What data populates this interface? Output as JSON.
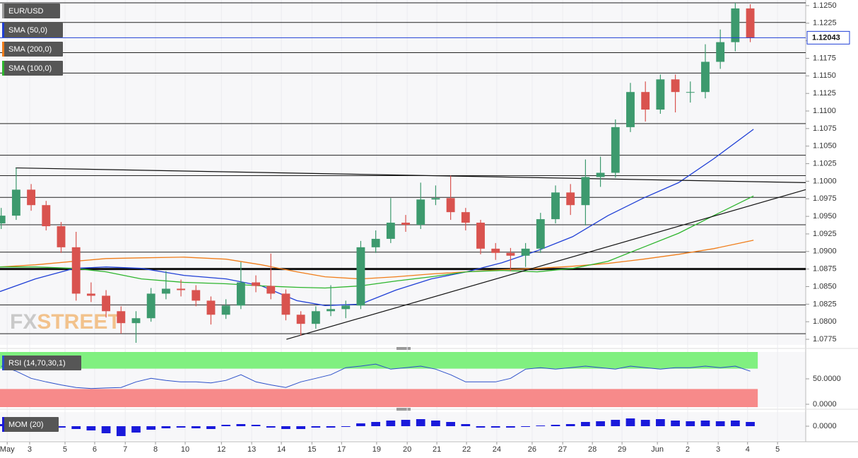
{
  "chart_data": {
    "type": "candlestick",
    "title": "EUR/USD",
    "x": [
      -0.2,
      0.3,
      0.8,
      1.3,
      1.8,
      2.3,
      2.8,
      3.3,
      3.8,
      4.3,
      4.8,
      5.3,
      5.8,
      6.3,
      6.8,
      7.3,
      7.8,
      8.3,
      8.8,
      9.3,
      9.8,
      10.3,
      10.8,
      11.3,
      11.8,
      12.3,
      12.8,
      13.3,
      13.8,
      14.3,
      14.8,
      15.3,
      15.8,
      16.3,
      16.8,
      17.3,
      17.8,
      18.3,
      18.8,
      19.3,
      19.8,
      20.3,
      20.8,
      21.3,
      21.8,
      22.3,
      22.8,
      23.3,
      23.8,
      24.3,
      24.8
    ],
    "open": [
      1.094,
      1.0951,
      1.0988,
      1.0966,
      1.0936,
      1.0906,
      1.084,
      1.0837,
      1.0815,
      1.0798,
      1.0805,
      1.084,
      1.0847,
      1.0845,
      1.083,
      1.081,
      1.0823,
      1.0856,
      1.0851,
      1.084,
      1.081,
      1.0797,
      1.0815,
      1.0818,
      1.0823,
      1.0906,
      1.0918,
      1.0941,
      1.0938,
      1.0974,
      1.0976,
      1.0956,
      1.0941,
      1.0904,
      1.0898,
      1.0894,
      1.0904,
      1.0946,
      1.0984,
      1.0966,
      1.1006,
      1.1012,
      1.1077,
      1.1127,
      1.1102,
      1.1145,
      1.1127,
      1.1127,
      1.117,
      1.1198,
      1.1246
    ],
    "high": [
      1.0962,
      1.1019,
      1.0996,
      1.0972,
      1.0942,
      1.0928,
      1.0856,
      1.0845,
      1.0822,
      1.0815,
      1.0848,
      1.0872,
      1.086,
      1.0852,
      1.0836,
      1.0832,
      1.0885,
      1.0866,
      1.0897,
      1.0846,
      1.0815,
      1.0822,
      1.0852,
      1.083,
      1.0915,
      1.093,
      1.0976,
      1.0952,
      1.0998,
      1.0994,
      1.1008,
      1.0962,
      1.0945,
      1.0912,
      1.0905,
      1.0912,
      1.0955,
      1.0994,
      1.0996,
      1.1031,
      1.1035,
      1.1088,
      1.114,
      1.1142,
      1.1152,
      1.1152,
      1.1142,
      1.1195,
      1.1216,
      1.1254,
      1.1252
    ],
    "low": [
      1.0932,
      1.0945,
      1.0958,
      1.093,
      1.0898,
      1.083,
      1.0828,
      1.0806,
      1.0783,
      1.077,
      1.08,
      1.0832,
      1.0836,
      1.0822,
      1.0796,
      1.0804,
      1.0818,
      1.0842,
      1.0832,
      1.0802,
      1.078,
      1.079,
      1.0808,
      1.0805,
      1.0818,
      1.0898,
      1.0912,
      1.0928,
      1.0932,
      1.0966,
      1.0945,
      1.093,
      1.0896,
      1.0888,
      1.0872,
      1.0878,
      1.0898,
      1.094,
      1.0952,
      1.0937,
      1.0992,
      1.1005,
      1.107,
      1.1085,
      1.1096,
      1.1098,
      1.1112,
      1.1118,
      1.116,
      1.1185,
      1.1198
    ],
    "close": [
      1.0951,
      1.0988,
      1.0966,
      1.0936,
      1.0906,
      1.084,
      1.0837,
      1.0815,
      1.0798,
      1.0805,
      1.084,
      1.0847,
      1.0845,
      1.083,
      1.081,
      1.0823,
      1.0856,
      1.0851,
      1.084,
      1.081,
      1.0797,
      1.0815,
      1.0818,
      1.0823,
      1.0906,
      1.0918,
      1.0941,
      1.0938,
      1.0974,
      1.0976,
      1.0956,
      1.0941,
      1.0904,
      1.0898,
      1.0894,
      1.0904,
      1.0946,
      1.0984,
      1.0966,
      1.1006,
      1.1012,
      1.1077,
      1.1127,
      1.1102,
      1.1145,
      1.1127,
      1.1127,
      1.117,
      1.1198,
      1.1246,
      1.1204
    ],
    "up_color": "#3d9a6e",
    "down_color": "#d9534f",
    "xlim": [
      -0.24,
      26.65
    ],
    "xticks": [
      {
        "value": 0,
        "label": "May"
      },
      {
        "value": 0.75,
        "label": "3"
      },
      {
        "value": 1.93,
        "label": "5"
      },
      {
        "value": 2.92,
        "label": "6"
      },
      {
        "value": 3.94,
        "label": "7"
      },
      {
        "value": 4.95,
        "label": "8"
      },
      {
        "value": 5.94,
        "label": "10"
      },
      {
        "value": 7.15,
        "label": "12"
      },
      {
        "value": 8.16,
        "label": "13"
      },
      {
        "value": 9.15,
        "label": "14"
      },
      {
        "value": 10.17,
        "label": "15"
      },
      {
        "value": 11.16,
        "label": "17"
      },
      {
        "value": 12.33,
        "label": "19"
      },
      {
        "value": 13.35,
        "label": "20"
      },
      {
        "value": 14.34,
        "label": "21"
      },
      {
        "value": 15.33,
        "label": "22"
      },
      {
        "value": 16.34,
        "label": "24"
      },
      {
        "value": 17.52,
        "label": "26"
      },
      {
        "value": 18.54,
        "label": "27"
      },
      {
        "value": 19.53,
        "label": "28"
      },
      {
        "value": 20.52,
        "label": "29"
      },
      {
        "value": 21.7,
        "label": "Jun"
      },
      {
        "value": 22.71,
        "label": "2"
      },
      {
        "value": 23.73,
        "label": "3"
      },
      {
        "value": 24.71,
        "label": "4"
      },
      {
        "value": 25.71,
        "label": "5"
      }
    ],
    "ylim": [
      1.0767,
      1.1258
    ],
    "yticks": [
      {
        "value": 1.125,
        "label": "1.1250"
      },
      {
        "value": 1.1225,
        "label": "1.1225"
      },
      {
        "value": 1.12,
        "label": "1.1200"
      },
      {
        "value": 1.1175,
        "label": "1.1175"
      },
      {
        "value": 1.115,
        "label": "1.1150"
      },
      {
        "value": 1.1125,
        "label": "1.1125"
      },
      {
        "value": 1.11,
        "label": "1.1100"
      },
      {
        "value": 1.1075,
        "label": "1.1075"
      },
      {
        "value": 1.105,
        "label": "1.1050"
      },
      {
        "value": 1.1025,
        "label": "1.1025"
      },
      {
        "value": 1.1,
        "label": "1.1000"
      },
      {
        "value": 1.0975,
        "label": "1.0975"
      },
      {
        "value": 1.095,
        "label": "1.0950"
      },
      {
        "value": 1.0925,
        "label": "1.0925"
      },
      {
        "value": 1.09,
        "label": "1.0900"
      },
      {
        "value": 1.0875,
        "label": "1.0875"
      },
      {
        "value": 1.085,
        "label": "1.0850"
      },
      {
        "value": 1.0825,
        "label": "1.0825"
      },
      {
        "value": 1.08,
        "label": "1.0800"
      },
      {
        "value": 1.0775,
        "label": "1.0775"
      }
    ],
    "last_price": {
      "value": 1.12043,
      "label": "1.12043"
    },
    "last_price_color": "#1f3fd6",
    "levels": [
      1.1254,
      1.1226,
      1.1183,
      1.1154,
      1.1082,
      1.1037,
      1.1008,
      1.0977,
      1.0938,
      1.0899,
      1.0824,
      1.0783
    ],
    "major_level": 1.0875,
    "trendlines": [
      [
        [
          0.28,
          1.1019
        ],
        [
          26.65,
          1.0998
        ]
      ],
      [
        [
          9.32,
          1.0775
        ],
        [
          26.65,
          1.0988
        ]
      ]
    ],
    "series": [
      {
        "name": "SMA (50,0)",
        "color": "#1f3fd6",
        "x": [
          -0.24,
          0.94,
          2.24,
          3.3,
          4.48,
          5.9,
          7.31,
          8.49,
          9.67,
          10.61,
          11.79,
          12.97,
          14.15,
          15.33,
          16.51,
          17.69,
          18.87,
          20.05,
          21.23,
          22.41,
          23.58,
          24.91
        ],
        "values": [
          1.0843,
          1.0861,
          1.0876,
          1.0878,
          1.0876,
          1.0866,
          1.0861,
          1.0851,
          1.083,
          1.0823,
          1.0825,
          1.0845,
          1.0861,
          1.0871,
          1.0884,
          1.0901,
          1.0921,
          1.0951,
          1.0976,
          1.0998,
          1.1032,
          1.1074
        ]
      },
      {
        "name": "SMA (200,0)",
        "color": "#f07d1a",
        "x": [
          -0.24,
          0.94,
          2.24,
          3.3,
          4.48,
          5.9,
          7.31,
          8.49,
          9.67,
          10.61,
          11.79,
          12.97,
          14.15,
          15.33,
          16.51,
          17.69,
          18.87,
          20.05,
          21.23,
          22.41,
          23.58,
          24.91
        ],
        "values": [
          1.0878,
          1.0881,
          1.0886,
          1.089,
          1.0891,
          1.0892,
          1.0889,
          1.0881,
          1.0871,
          1.0864,
          1.0861,
          1.0864,
          1.0868,
          1.0871,
          1.0874,
          1.0876,
          1.0879,
          1.0883,
          1.0889,
          1.0896,
          1.0904,
          1.0916
        ]
      },
      {
        "name": "SMA (100,0)",
        "color": "#2db52d",
        "x": [
          -0.24,
          0.94,
          2.24,
          3.3,
          4.48,
          5.9,
          7.31,
          8.49,
          9.67,
          10.61,
          11.79,
          12.97,
          14.15,
          15.33,
          16.51,
          17.69,
          18.87,
          20.05,
          21.23,
          22.41,
          23.58,
          24.91
        ],
        "values": [
          1.0878,
          1.0878,
          1.0876,
          1.0871,
          1.0861,
          1.0856,
          1.0854,
          1.0851,
          1.0849,
          1.0848,
          1.0851,
          1.0858,
          1.0864,
          1.0871,
          1.0873,
          1.0871,
          1.0876,
          1.0886,
          1.0906,
          1.0926,
          1.0951,
          1.0979
        ]
      }
    ],
    "watermark": [
      "FX",
      "STREET"
    ],
    "rsi": {
      "type": "line",
      "name": "RSI (14,70,30,1)",
      "color": "#2b4fc9",
      "upper": 70,
      "lower": 30,
      "upper_color": "#80f080",
      "lower_color": "#f78a8a",
      "values": [
        75,
        65,
        51,
        44,
        38,
        33,
        31,
        32,
        33,
        44,
        51,
        47,
        44,
        44,
        42,
        47,
        58,
        44,
        38,
        33,
        44,
        51,
        58,
        72,
        75,
        79,
        69,
        72,
        75,
        69,
        58,
        44,
        44,
        44,
        51,
        69,
        72,
        69,
        72,
        75,
        72,
        69,
        75,
        72,
        69,
        72,
        72,
        75,
        72,
        75,
        65
      ],
      "ylim": [
        -5.6,
        102.8
      ],
      "yticks": [
        {
          "value": 50,
          "label": "50.0000"
        },
        {
          "value": 0,
          "label": "0.0000"
        }
      ]
    },
    "mom": {
      "type": "bar",
      "name": "MOM (20)",
      "color": "#1a1adb",
      "values": [
        0.0015,
        0.002,
        0.0015,
        0.001,
        -0.001,
        -0.002,
        -0.003,
        -0.005,
        -0.007,
        -0.0045,
        -0.0025,
        -0.0015,
        -0.001,
        -0.0015,
        -0.002,
        0.001,
        0.0015,
        0.001,
        -0.001,
        -0.002,
        -0.002,
        -0.001,
        -0.001,
        -0.0005,
        0.002,
        0.003,
        0.004,
        0.0045,
        0.005,
        0.004,
        0.003,
        0.0015,
        -0.001,
        -0.001,
        -0.001,
        -0.0005,
        0.0005,
        0.001,
        0.0015,
        0.003,
        0.0035,
        0.0045,
        0.0055,
        0.0045,
        0.005,
        0.004,
        0.0035,
        0.004,
        0.0035,
        0.004,
        0.003
      ],
      "ylim": [
        -0.0095,
        0.01
      ],
      "yticks": [
        {
          "value": 0,
          "label": "0.0000"
        }
      ]
    }
  }
}
